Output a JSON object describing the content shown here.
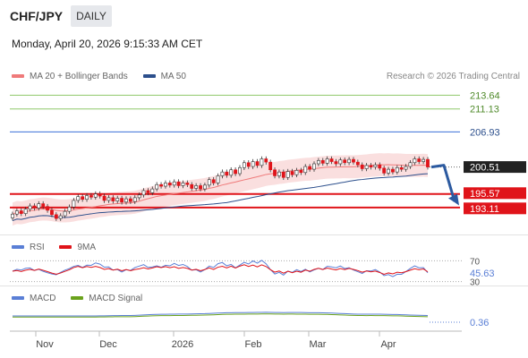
{
  "header": {
    "pair": "CHF/JPY",
    "timeframe": "DAILY",
    "datetime": "Monday, April 20, 2026 9:15:33 AM CET"
  },
  "legends": {
    "ma20": "MA 20 + Bollinger Bands",
    "ma50": "MA 50",
    "rsi": "RSI",
    "rsi_ma": "9MA",
    "macd": "MACD",
    "macd_signal": "MACD Signal",
    "credit": "Research © 2026 Trading Central"
  },
  "colors": {
    "ma20": "#ef7a7a",
    "ma50": "#2c4f8c",
    "resistance": "#8fc86a",
    "pivot": "#3a6fd8",
    "support": "#e0141a",
    "current_tag": "#222222",
    "rsi": "#5a7fd6",
    "rsi_ma": "#e0141a",
    "macd": "#5a7fd6",
    "macd_signal": "#6aa21c",
    "bull": "#ffffff",
    "bear": "#e0141a"
  },
  "levels": [
    {
      "label": "213.64",
      "value": 213.64,
      "kind": "resistance"
    },
    {
      "label": "211.13",
      "value": 211.13,
      "kind": "resistance"
    },
    {
      "label": "206.93",
      "value": 206.93,
      "kind": "pivot"
    },
    {
      "label": "200.51",
      "value": 200.51,
      "kind": "current"
    },
    {
      "label": "195.57",
      "value": 195.57,
      "kind": "support"
    },
    {
      "label": "193.11",
      "value": 193.11,
      "kind": "support"
    }
  ],
  "rsi": {
    "levels": [
      "70",
      "30"
    ],
    "value": "45.63"
  },
  "macd": {
    "value": "0.36"
  },
  "x_axis": [
    "Nov",
    "Dec",
    "2026",
    "Feb",
    "Mar",
    "Apr"
  ],
  "price_series": [
    {
      "i": 0,
      "o": 191.2,
      "c": 191.9
    },
    {
      "i": 1,
      "o": 191.9,
      "c": 192.5
    },
    {
      "i": 2,
      "o": 192.5,
      "c": 192.0
    },
    {
      "i": 3,
      "o": 192.0,
      "c": 192.8
    },
    {
      "i": 4,
      "o": 192.8,
      "c": 193.4
    },
    {
      "i": 5,
      "o": 193.4,
      "c": 193.0
    },
    {
      "i": 6,
      "o": 193.0,
      "c": 193.8
    },
    {
      "i": 7,
      "o": 193.8,
      "c": 193.3
    },
    {
      "i": 8,
      "o": 193.3,
      "c": 192.6
    },
    {
      "i": 9,
      "o": 192.6,
      "c": 191.8
    },
    {
      "i": 10,
      "o": 191.8,
      "c": 191.1
    },
    {
      "i": 11,
      "o": 191.1,
      "c": 191.6
    },
    {
      "i": 12,
      "o": 191.6,
      "c": 192.4
    },
    {
      "i": 13,
      "o": 192.4,
      "c": 193.2
    },
    {
      "i": 14,
      "o": 193.2,
      "c": 194.4
    },
    {
      "i": 15,
      "o": 194.4,
      "c": 195.1
    },
    {
      "i": 16,
      "o": 195.1,
      "c": 194.6
    },
    {
      "i": 17,
      "o": 194.6,
      "c": 195.3
    },
    {
      "i": 18,
      "o": 195.3,
      "c": 195.0
    },
    {
      "i": 19,
      "o": 195.0,
      "c": 195.6
    },
    {
      "i": 20,
      "o": 195.6,
      "c": 195.2
    },
    {
      "i": 21,
      "o": 195.2,
      "c": 194.4
    },
    {
      "i": 22,
      "o": 194.4,
      "c": 194.9
    },
    {
      "i": 23,
      "o": 194.9,
      "c": 194.3
    },
    {
      "i": 24,
      "o": 194.3,
      "c": 194.8
    },
    {
      "i": 25,
      "o": 194.8,
      "c": 194.1
    },
    {
      "i": 26,
      "o": 194.1,
      "c": 194.7
    },
    {
      "i": 27,
      "o": 194.7,
      "c": 194.2
    },
    {
      "i": 28,
      "o": 194.2,
      "c": 194.9
    },
    {
      "i": 29,
      "o": 194.9,
      "c": 195.4
    },
    {
      "i": 30,
      "o": 195.4,
      "c": 196.2
    },
    {
      "i": 31,
      "o": 196.2,
      "c": 195.8
    },
    {
      "i": 32,
      "o": 195.8,
      "c": 196.5
    },
    {
      "i": 33,
      "o": 196.5,
      "c": 197.3
    },
    {
      "i": 34,
      "o": 197.3,
      "c": 197.0
    },
    {
      "i": 35,
      "o": 197.0,
      "c": 197.6
    },
    {
      "i": 36,
      "o": 197.6,
      "c": 197.2
    },
    {
      "i": 37,
      "o": 197.2,
      "c": 197.8
    },
    {
      "i": 38,
      "o": 197.8,
      "c": 197.1
    },
    {
      "i": 39,
      "o": 197.1,
      "c": 197.6
    },
    {
      "i": 40,
      "o": 197.6,
      "c": 197.3
    },
    {
      "i": 41,
      "o": 197.3,
      "c": 196.6
    },
    {
      "i": 42,
      "o": 196.6,
      "c": 197.1
    },
    {
      "i": 43,
      "o": 197.1,
      "c": 196.5
    },
    {
      "i": 44,
      "o": 196.5,
      "c": 197.2
    },
    {
      "i": 45,
      "o": 197.2,
      "c": 198.2
    },
    {
      "i": 46,
      "o": 198.2,
      "c": 197.6
    },
    {
      "i": 47,
      "o": 197.6,
      "c": 198.9
    },
    {
      "i": 48,
      "o": 198.9,
      "c": 199.6
    },
    {
      "i": 49,
      "o": 199.6,
      "c": 199.0
    },
    {
      "i": 50,
      "o": 199.0,
      "c": 200.0
    },
    {
      "i": 51,
      "o": 200.0,
      "c": 199.3
    },
    {
      "i": 52,
      "o": 199.3,
      "c": 200.4
    },
    {
      "i": 53,
      "o": 200.4,
      "c": 201.3
    },
    {
      "i": 54,
      "o": 201.3,
      "c": 200.6
    },
    {
      "i": 55,
      "o": 200.6,
      "c": 201.5
    },
    {
      "i": 56,
      "o": 201.5,
      "c": 200.8
    },
    {
      "i": 57,
      "o": 200.8,
      "c": 202.0
    },
    {
      "i": 58,
      "o": 202.0,
      "c": 201.4
    },
    {
      "i": 59,
      "o": 201.4,
      "c": 200.0
    },
    {
      "i": 60,
      "o": 200.0,
      "c": 198.9
    },
    {
      "i": 61,
      "o": 198.9,
      "c": 199.6
    },
    {
      "i": 62,
      "o": 199.6,
      "c": 198.6
    },
    {
      "i": 63,
      "o": 198.6,
      "c": 199.7
    },
    {
      "i": 64,
      "o": 199.7,
      "c": 199.1
    },
    {
      "i": 65,
      "o": 199.1,
      "c": 199.9
    },
    {
      "i": 66,
      "o": 199.9,
      "c": 199.5
    },
    {
      "i": 67,
      "o": 199.5,
      "c": 200.6
    },
    {
      "i": 68,
      "o": 200.6,
      "c": 200.1
    },
    {
      "i": 69,
      "o": 200.1,
      "c": 201.1
    },
    {
      "i": 70,
      "o": 201.1,
      "c": 201.7
    },
    {
      "i": 71,
      "o": 201.7,
      "c": 201.2
    },
    {
      "i": 72,
      "o": 201.2,
      "c": 202.0
    },
    {
      "i": 73,
      "o": 202.0,
      "c": 201.5
    },
    {
      "i": 74,
      "o": 201.5,
      "c": 201.1
    },
    {
      "i": 75,
      "o": 201.1,
      "c": 201.8
    },
    {
      "i": 76,
      "o": 201.8,
      "c": 201.3
    },
    {
      "i": 77,
      "o": 201.3,
      "c": 201.9
    },
    {
      "i": 78,
      "o": 201.9,
      "c": 201.4
    },
    {
      "i": 79,
      "o": 201.4,
      "c": 200.9
    },
    {
      "i": 80,
      "o": 200.9,
      "c": 200.2
    },
    {
      "i": 81,
      "o": 200.2,
      "c": 200.8
    },
    {
      "i": 82,
      "o": 200.8,
      "c": 200.5
    },
    {
      "i": 83,
      "o": 200.5,
      "c": 200.9
    },
    {
      "i": 84,
      "o": 200.9,
      "c": 200.3
    },
    {
      "i": 85,
      "o": 200.3,
      "c": 199.4
    },
    {
      "i": 86,
      "o": 199.4,
      "c": 200.1
    },
    {
      "i": 87,
      "o": 200.1,
      "c": 199.6
    },
    {
      "i": 88,
      "o": 199.6,
      "c": 200.4
    },
    {
      "i": 89,
      "o": 200.4,
      "c": 200.1
    },
    {
      "i": 90,
      "o": 200.1,
      "c": 200.6
    },
    {
      "i": 91,
      "o": 200.6,
      "c": 201.3
    },
    {
      "i": 92,
      "o": 201.3,
      "c": 202.0
    },
    {
      "i": 93,
      "o": 202.0,
      "c": 201.5
    },
    {
      "i": 94,
      "o": 201.5,
      "c": 201.9
    },
    {
      "i": 95,
      "o": 201.9,
      "c": 200.51
    }
  ]
}
